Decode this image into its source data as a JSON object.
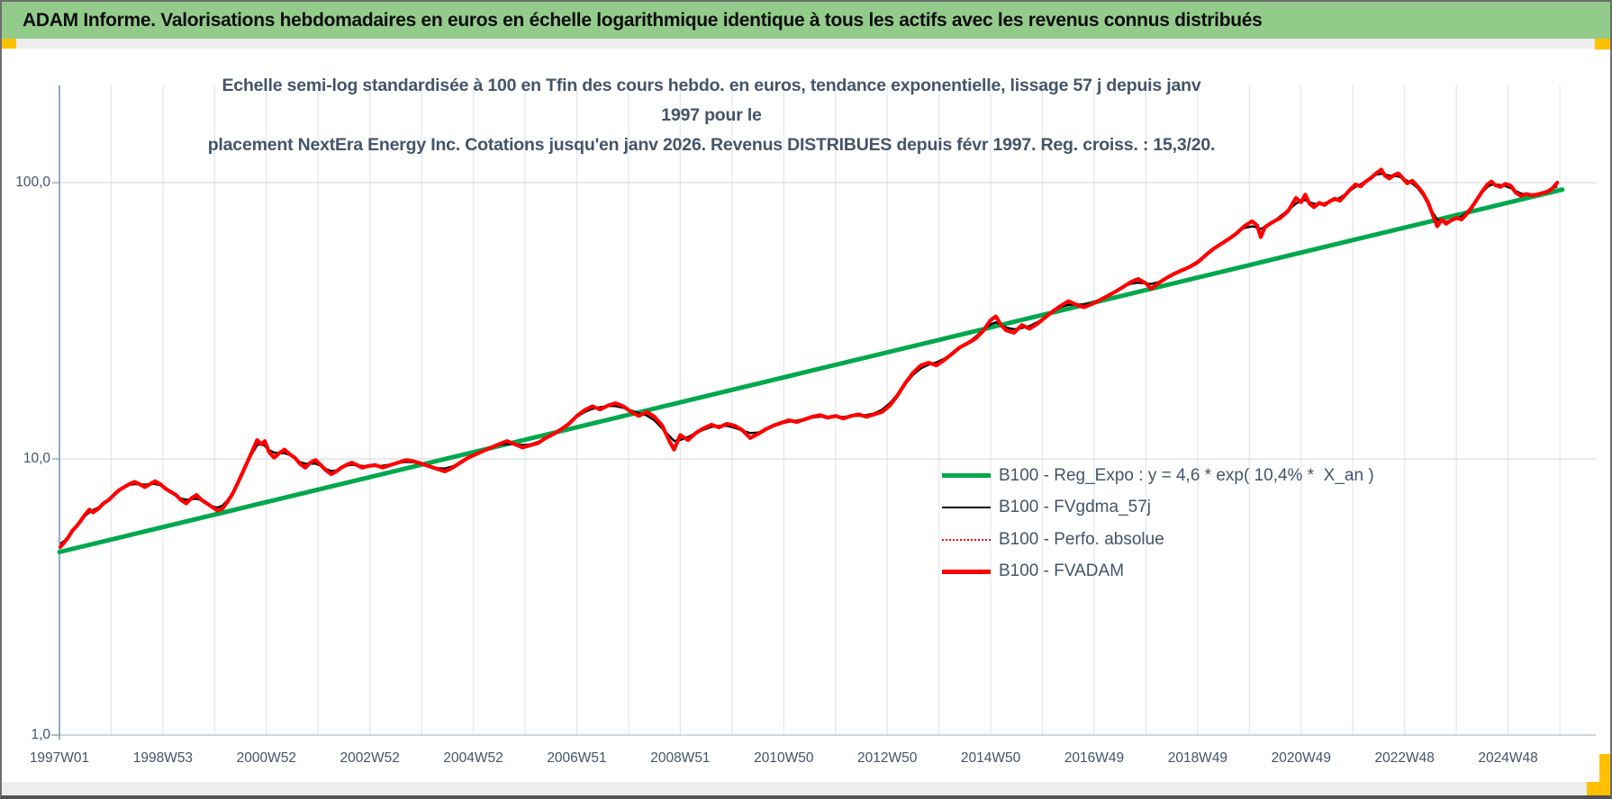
{
  "banner": {
    "title": "ADAM Informe. Valorisations hebdomadaires en euros en échelle logarithmique identique à tous les actifs avec les revenus connus distribués"
  },
  "subtitle": {
    "line1": "Echelle semi-log standardisée à 100 en Tfin des cours hebdo. en euros, tendance exponentielle, lissage 57 j depuis janv 1997 pour le",
    "line2": "placement NextEra Energy Inc. Cotations jusqu'en janv 2026. Revenus DISTRIBUES depuis févr 1997. Reg. croiss. : 15,3/20."
  },
  "chart_data": {
    "type": "line",
    "title": "Echelle semi-log standardisée à 100 en Tfin des cours hebdo. en euros, tendance exponentielle, lissage 57 j depuis janv 1997 pour le placement NextEra Energy Inc. Cotations jusqu'en janv 2026. Revenus DISTRIBUES depuis févr 1997. Reg. croiss. : 15,3/20.",
    "y_scale": "log10",
    "ylim": [
      1,
      230
    ],
    "x_range_years": [
      1997.0,
      2026.05
    ],
    "grid": {
      "vertical_every_years": 1,
      "horizontal_at": [
        100,
        10
      ]
    },
    "legend_position": "inside-right",
    "y_ticks": [
      {
        "label": "100,0",
        "value": 100
      },
      {
        "label": "10,0",
        "value": 10
      },
      {
        "label": "1,0",
        "value": 1
      }
    ],
    "x_ticks": [
      {
        "label": "1997W01",
        "year": 1997
      },
      {
        "label": "1998W53",
        "year": 1999
      },
      {
        "label": "2000W52",
        "year": 2001
      },
      {
        "label": "2002W52",
        "year": 2003
      },
      {
        "label": "2004W52",
        "year": 2005
      },
      {
        "label": "2006W51",
        "year": 2007
      },
      {
        "label": "2008W51",
        "year": 2009
      },
      {
        "label": "2010W50",
        "year": 2011
      },
      {
        "label": "2012W50",
        "year": 2013
      },
      {
        "label": "2014W50",
        "year": 2015
      },
      {
        "label": "2016W49",
        "year": 2017
      },
      {
        "label": "2018W49",
        "year": 2019
      },
      {
        "label": "2020W49",
        "year": 2021
      },
      {
        "label": "2022W48",
        "year": 2023
      },
      {
        "label": "2024W48",
        "year": 2025
      }
    ],
    "series": [
      {
        "name": "B100 - Reg_Expo : y = 4,6 * exp( 10,4% *  X_an )",
        "color": "#00a84d",
        "kind": "exponential_regression",
        "a": 4.6,
        "annual_rate": 0.104,
        "x_start": 1997.0,
        "x_end": 2026.05
      },
      {
        "name": "B100 - FVgdma_57j",
        "color": "#000000",
        "kind": "moving_average_57d_of_FVADAM"
      },
      {
        "name": "B100 - Perfo. absolue",
        "color": "#ff0000",
        "kind": "dotted_line_coincident_with_FVADAM"
      },
      {
        "name": "B100 - FVADAM",
        "color": "#ff0000",
        "kind": "line",
        "points": [
          [
            1997.02,
            4.8
          ],
          [
            1997.1,
            5.0
          ],
          [
            1997.17,
            5.2
          ],
          [
            1997.25,
            5.5
          ],
          [
            1997.33,
            5.7
          ],
          [
            1997.42,
            6.0
          ],
          [
            1997.5,
            6.3
          ],
          [
            1997.58,
            6.55
          ],
          [
            1997.65,
            6.4
          ],
          [
            1997.75,
            6.6
          ],
          [
            1997.85,
            6.9
          ],
          [
            1997.95,
            7.1
          ],
          [
            1998.05,
            7.4
          ],
          [
            1998.15,
            7.7
          ],
          [
            1998.25,
            7.9
          ],
          [
            1998.35,
            8.1
          ],
          [
            1998.45,
            8.25
          ],
          [
            1998.55,
            8.1
          ],
          [
            1998.65,
            7.9
          ],
          [
            1998.75,
            8.1
          ],
          [
            1998.85,
            8.3
          ],
          [
            1998.95,
            8.1
          ],
          [
            1999.05,
            7.8
          ],
          [
            1999.15,
            7.6
          ],
          [
            1999.25,
            7.4
          ],
          [
            1999.35,
            7.1
          ],
          [
            1999.45,
            6.9
          ],
          [
            1999.55,
            7.2
          ],
          [
            1999.65,
            7.4
          ],
          [
            1999.75,
            7.1
          ],
          [
            1999.85,
            6.9
          ],
          [
            1999.95,
            6.7
          ],
          [
            2000.05,
            6.5
          ],
          [
            2000.15,
            6.6
          ],
          [
            2000.25,
            7.0
          ],
          [
            2000.35,
            7.5
          ],
          [
            2000.45,
            8.2
          ],
          [
            2000.55,
            9.0
          ],
          [
            2000.65,
            9.9
          ],
          [
            2000.75,
            10.9
          ],
          [
            2000.82,
            11.7
          ],
          [
            2000.9,
            11.3
          ],
          [
            2000.97,
            11.6
          ],
          [
            2001.05,
            10.6
          ],
          [
            2001.15,
            10.1
          ],
          [
            2001.25,
            10.5
          ],
          [
            2001.35,
            10.8
          ],
          [
            2001.45,
            10.4
          ],
          [
            2001.55,
            10.1
          ],
          [
            2001.65,
            9.6
          ],
          [
            2001.75,
            9.3
          ],
          [
            2001.85,
            9.7
          ],
          [
            2001.95,
            9.9
          ],
          [
            2002.05,
            9.5
          ],
          [
            2002.15,
            9.1
          ],
          [
            2002.25,
            8.8
          ],
          [
            2002.35,
            9.0
          ],
          [
            2002.45,
            9.3
          ],
          [
            2002.55,
            9.5
          ],
          [
            2002.65,
            9.7
          ],
          [
            2002.75,
            9.5
          ],
          [
            2002.85,
            9.3
          ],
          [
            2002.95,
            9.4
          ],
          [
            2003.1,
            9.5
          ],
          [
            2003.25,
            9.3
          ],
          [
            2003.4,
            9.5
          ],
          [
            2003.55,
            9.7
          ],
          [
            2003.7,
            9.9
          ],
          [
            2003.85,
            9.8
          ],
          [
            2004.0,
            9.6
          ],
          [
            2004.15,
            9.4
          ],
          [
            2004.3,
            9.2
          ],
          [
            2004.45,
            9.0
          ],
          [
            2004.6,
            9.3
          ],
          [
            2004.75,
            9.7
          ],
          [
            2004.9,
            10.1
          ],
          [
            2005.05,
            10.4
          ],
          [
            2005.2,
            10.7
          ],
          [
            2005.35,
            11.0
          ],
          [
            2005.5,
            11.3
          ],
          [
            2005.65,
            11.6
          ],
          [
            2005.8,
            11.3
          ],
          [
            2005.95,
            11.0
          ],
          [
            2006.1,
            11.2
          ],
          [
            2006.25,
            11.4
          ],
          [
            2006.4,
            11.9
          ],
          [
            2006.55,
            12.3
          ],
          [
            2006.7,
            12.8
          ],
          [
            2006.85,
            13.4
          ],
          [
            2007.0,
            14.3
          ],
          [
            2007.15,
            15.0
          ],
          [
            2007.3,
            15.5
          ],
          [
            2007.45,
            15.1
          ],
          [
            2007.6,
            15.6
          ],
          [
            2007.75,
            15.9
          ],
          [
            2007.9,
            15.5
          ],
          [
            2008.05,
            14.8
          ],
          [
            2008.2,
            14.3
          ],
          [
            2008.35,
            14.8
          ],
          [
            2008.5,
            14.2
          ],
          [
            2008.65,
            13.2
          ],
          [
            2008.8,
            11.5
          ],
          [
            2008.88,
            10.8
          ],
          [
            2009.0,
            12.2
          ],
          [
            2009.15,
            11.7
          ],
          [
            2009.3,
            12.4
          ],
          [
            2009.45,
            12.9
          ],
          [
            2009.6,
            13.3
          ],
          [
            2009.75,
            13.0
          ],
          [
            2009.9,
            13.4
          ],
          [
            2010.05,
            13.2
          ],
          [
            2010.2,
            12.7
          ],
          [
            2010.35,
            11.9
          ],
          [
            2010.5,
            12.3
          ],
          [
            2010.65,
            12.8
          ],
          [
            2010.8,
            13.2
          ],
          [
            2010.95,
            13.5
          ],
          [
            2011.1,
            13.8
          ],
          [
            2011.25,
            13.6
          ],
          [
            2011.4,
            13.9
          ],
          [
            2011.55,
            14.2
          ],
          [
            2011.7,
            14.4
          ],
          [
            2011.85,
            14.1
          ],
          [
            2012.0,
            14.3
          ],
          [
            2012.15,
            14.0
          ],
          [
            2012.3,
            14.3
          ],
          [
            2012.45,
            14.5
          ],
          [
            2012.6,
            14.2
          ],
          [
            2012.75,
            14.5
          ],
          [
            2012.9,
            14.8
          ],
          [
            2013.05,
            15.6
          ],
          [
            2013.2,
            17.0
          ],
          [
            2013.35,
            18.8
          ],
          [
            2013.5,
            20.5
          ],
          [
            2013.65,
            21.8
          ],
          [
            2013.8,
            22.3
          ],
          [
            2013.95,
            21.8
          ],
          [
            2014.1,
            22.8
          ],
          [
            2014.25,
            24.0
          ],
          [
            2014.4,
            25.3
          ],
          [
            2014.55,
            26.2
          ],
          [
            2014.7,
            27.2
          ],
          [
            2014.85,
            29.0
          ],
          [
            2015.0,
            31.8
          ],
          [
            2015.1,
            32.8
          ],
          [
            2015.2,
            30.5
          ],
          [
            2015.3,
            29.2
          ],
          [
            2015.45,
            28.6
          ],
          [
            2015.6,
            30.5
          ],
          [
            2015.75,
            29.6
          ],
          [
            2015.9,
            30.8
          ],
          [
            2016.05,
            32.5
          ],
          [
            2016.2,
            34.2
          ],
          [
            2016.35,
            35.8
          ],
          [
            2016.5,
            37.2
          ],
          [
            2016.65,
            36.2
          ],
          [
            2016.8,
            35.4
          ],
          [
            2016.95,
            36.3
          ],
          [
            2017.1,
            37.5
          ],
          [
            2017.25,
            38.8
          ],
          [
            2017.4,
            40.2
          ],
          [
            2017.55,
            41.8
          ],
          [
            2017.7,
            43.6
          ],
          [
            2017.85,
            44.8
          ],
          [
            2018.0,
            43.2
          ],
          [
            2018.1,
            41.3
          ],
          [
            2018.25,
            43.4
          ],
          [
            2018.4,
            45.2
          ],
          [
            2018.55,
            46.8
          ],
          [
            2018.7,
            48.2
          ],
          [
            2018.85,
            49.6
          ],
          [
            2019.0,
            51.5
          ],
          [
            2019.15,
            54.5
          ],
          [
            2019.3,
            57.5
          ],
          [
            2019.45,
            60.0
          ],
          [
            2019.6,
            62.5
          ],
          [
            2019.75,
            65.5
          ],
          [
            2019.9,
            69.5
          ],
          [
            2020.05,
            72.5
          ],
          [
            2020.15,
            70.0
          ],
          [
            2020.22,
            63.5
          ],
          [
            2020.3,
            69.0
          ],
          [
            2020.45,
            72.0
          ],
          [
            2020.6,
            74.5
          ],
          [
            2020.75,
            79.0
          ],
          [
            2020.9,
            88.0
          ],
          [
            2021.0,
            85.0
          ],
          [
            2021.08,
            90.5
          ],
          [
            2021.16,
            84.0
          ],
          [
            2021.25,
            81.5
          ],
          [
            2021.35,
            84.5
          ],
          [
            2021.45,
            83.0
          ],
          [
            2021.55,
            85.5
          ],
          [
            2021.65,
            87.5
          ],
          [
            2021.75,
            86.0
          ],
          [
            2021.85,
            90.0
          ],
          [
            2021.95,
            94.5
          ],
          [
            2022.05,
            98.5
          ],
          [
            2022.15,
            97.0
          ],
          [
            2022.25,
            101.0
          ],
          [
            2022.35,
            104.0
          ],
          [
            2022.45,
            108.0
          ],
          [
            2022.55,
            111.5
          ],
          [
            2022.62,
            106.0
          ],
          [
            2022.7,
            103.5
          ],
          [
            2022.8,
            106.5
          ],
          [
            2022.88,
            108.0
          ],
          [
            2022.96,
            104.0
          ],
          [
            2023.05,
            99.5
          ],
          [
            2023.15,
            101.5
          ],
          [
            2023.25,
            97.0
          ],
          [
            2023.35,
            92.0
          ],
          [
            2023.45,
            85.0
          ],
          [
            2023.55,
            76.0
          ],
          [
            2023.63,
            69.5
          ],
          [
            2023.72,
            73.5
          ],
          [
            2023.8,
            71.0
          ],
          [
            2023.9,
            73.0
          ],
          [
            2024.0,
            74.5
          ],
          [
            2024.1,
            73.5
          ],
          [
            2024.2,
            77.0
          ],
          [
            2024.3,
            81.5
          ],
          [
            2024.4,
            87.0
          ],
          [
            2024.5,
            93.0
          ],
          [
            2024.6,
            98.5
          ],
          [
            2024.68,
            101.0
          ],
          [
            2024.75,
            98.0
          ],
          [
            2024.85,
            96.5
          ],
          [
            2024.95,
            99.0
          ],
          [
            2025.05,
            97.5
          ],
          [
            2025.15,
            92.0
          ],
          [
            2025.25,
            89.5
          ],
          [
            2025.35,
            91.0
          ],
          [
            2025.45,
            90.0
          ],
          [
            2025.55,
            90.5
          ],
          [
            2025.65,
            91.5
          ],
          [
            2025.75,
            92.5
          ],
          [
            2025.85,
            95.0
          ],
          [
            2025.95,
            100.0
          ]
        ]
      }
    ]
  },
  "colors": {
    "banner_bg": "#93cb8b",
    "corner_marker": "#ffc000",
    "text_dark_blue": "#44546a",
    "reg_line": "#00a84d",
    "price_line": "#ff0000",
    "smooth_line": "#000000"
  }
}
